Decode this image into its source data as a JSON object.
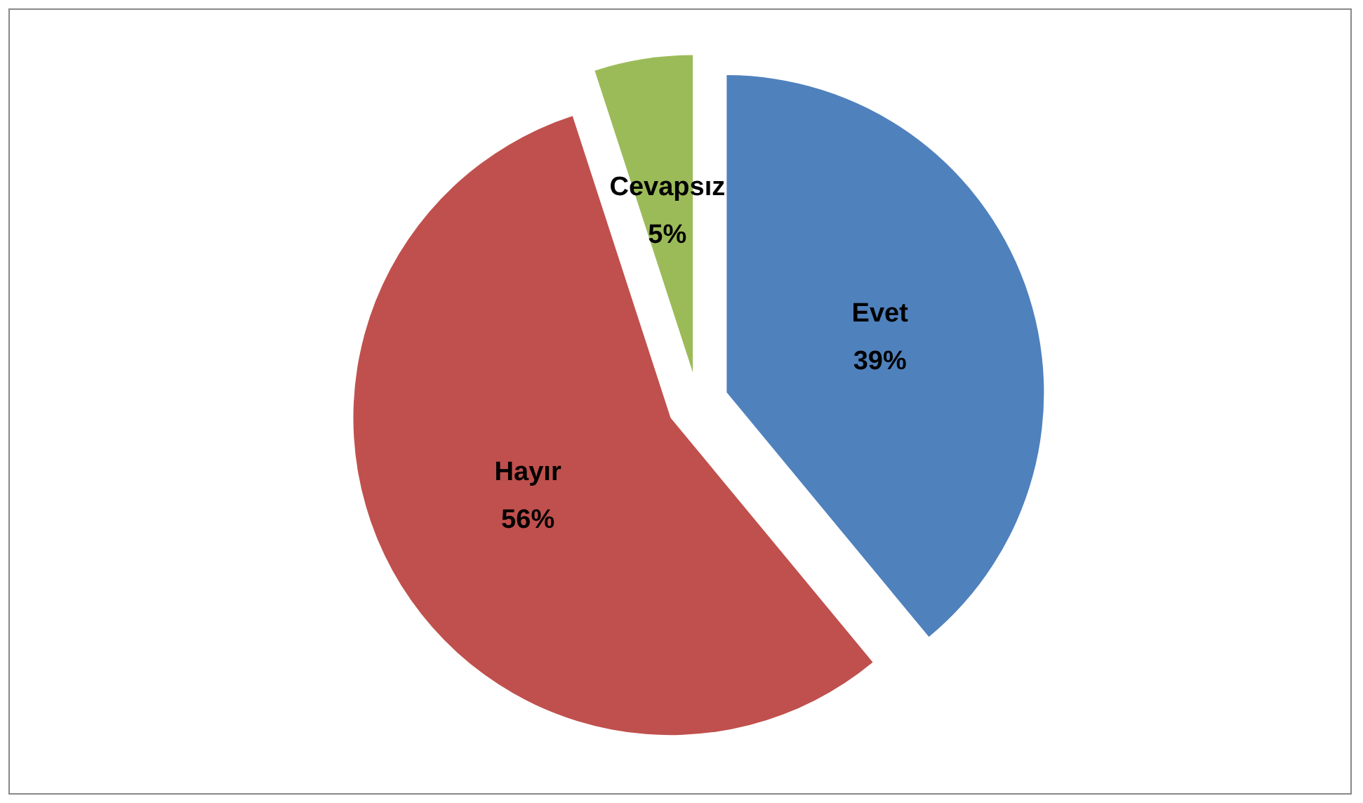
{
  "chart_data": {
    "type": "pie",
    "categories": [
      "Evet",
      "Hayır",
      "Cevapsız"
    ],
    "values": [
      39,
      56,
      5
    ],
    "value_labels": [
      "39%",
      "56%",
      "5%"
    ],
    "colors": [
      "#4f81bd",
      "#c0504d",
      "#9bbb59"
    ],
    "legend": false
  }
}
